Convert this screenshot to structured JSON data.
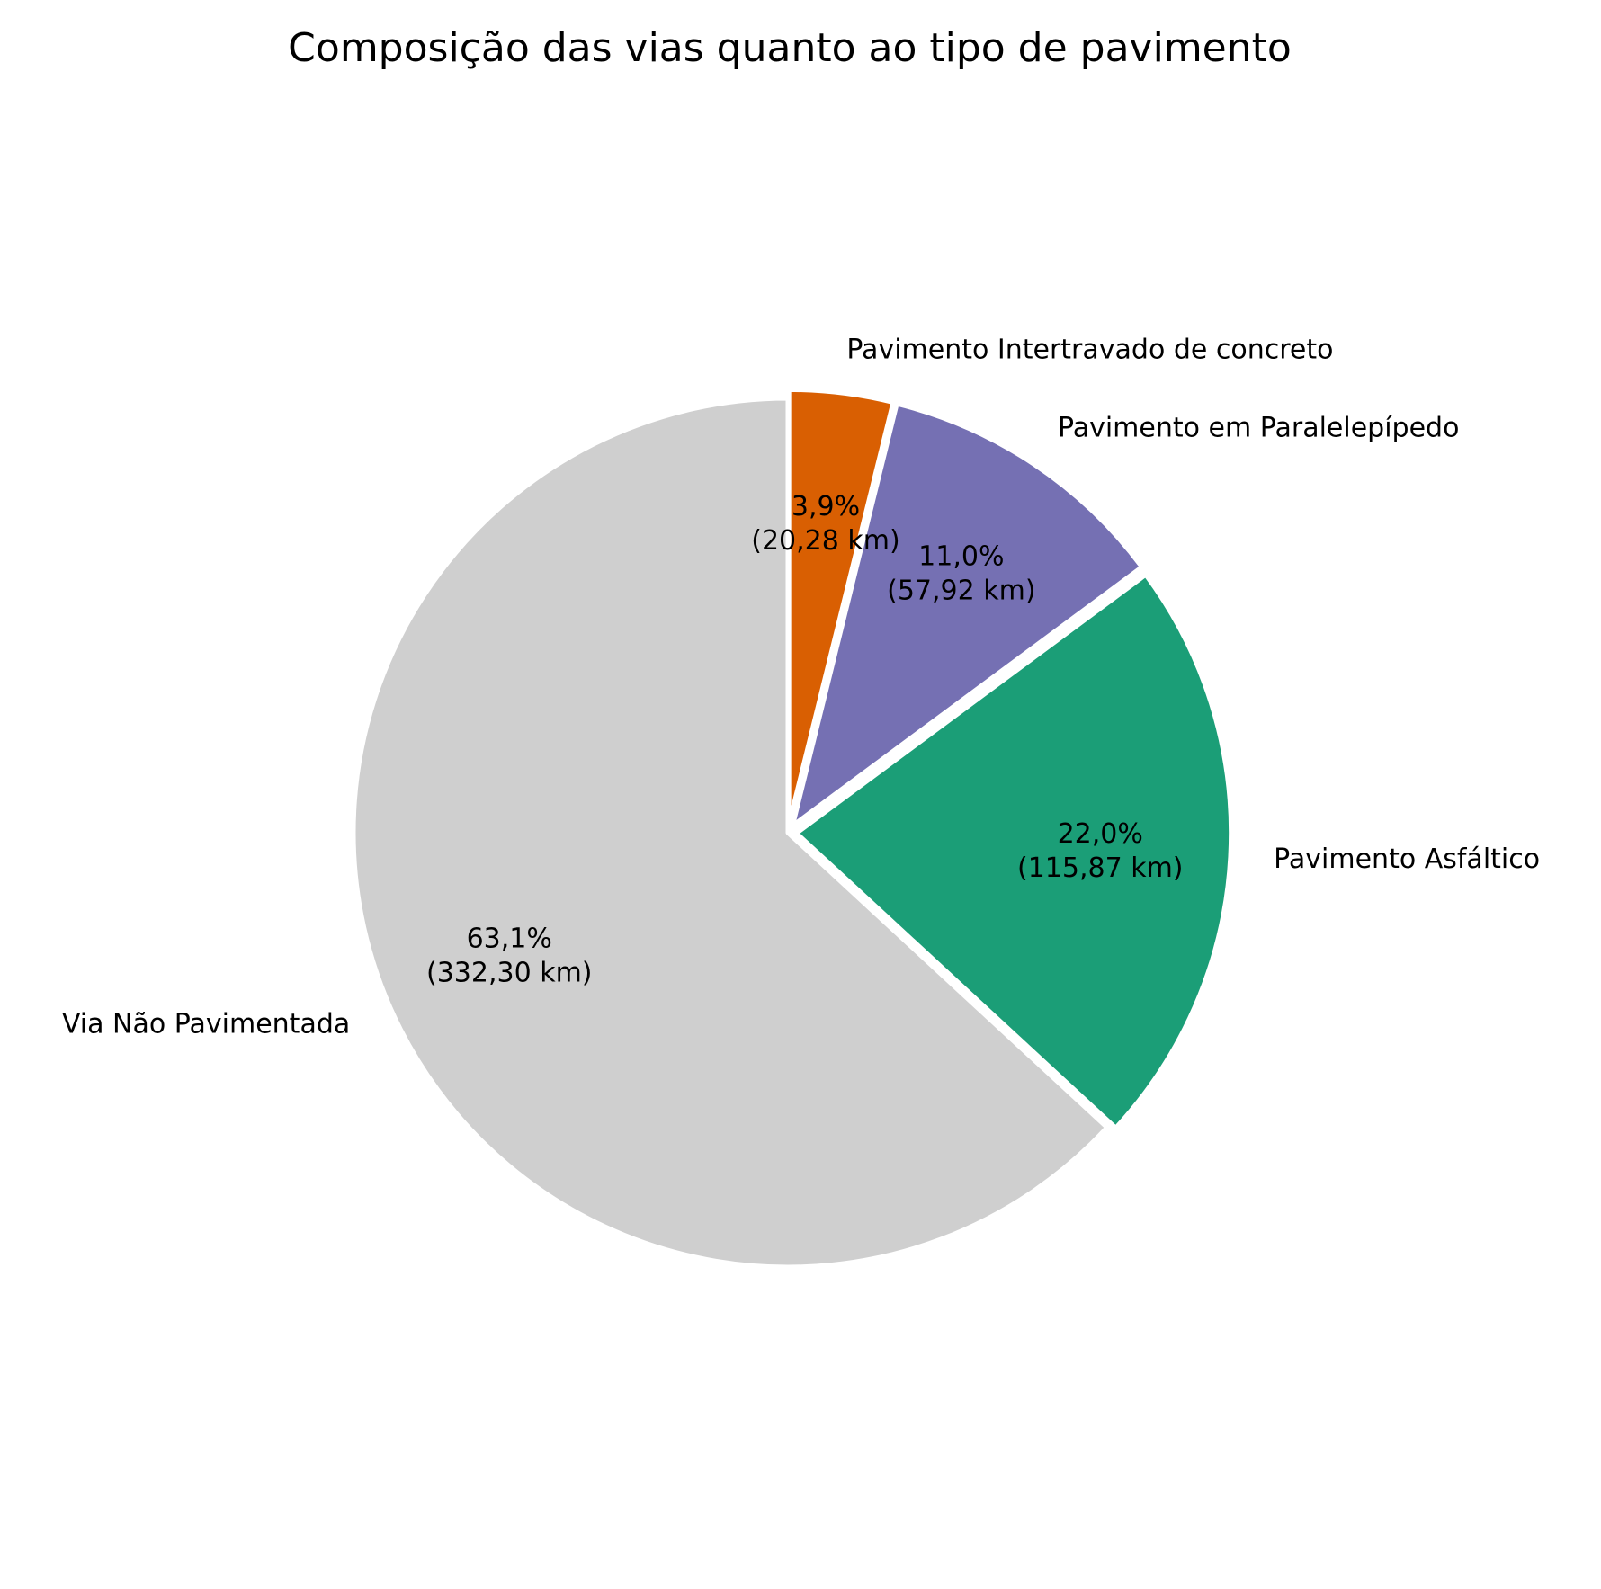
{
  "chart_data": {
    "type": "pie",
    "title": "Composição das vias quanto ao tipo de pavimento",
    "start_angle_deg": 90,
    "direction": "clockwise",
    "slices": [
      {
        "label": "Pavimento Intertravado de concreto",
        "value": 20.28,
        "percent_label": "3,9%",
        "value_label": "(20,28 km)",
        "color": "#d95f02",
        "exploded": true
      },
      {
        "label": "Pavimento em Paralelepípedo",
        "value": 57.92,
        "percent_label": "11,0%",
        "value_label": "(57,92 km)",
        "color": "#7570b3",
        "exploded": true
      },
      {
        "label": "Pavimento Asfáltico",
        "value": 115.87,
        "percent_label": "22,0%",
        "value_label": "(115,87 km)",
        "color": "#1b9e77",
        "exploded": true
      },
      {
        "label": "Via Não Pavimentada",
        "value": 332.3,
        "percent_label": "63,1%",
        "value_label": "(332,30 km)",
        "color": "#cfcfcf",
        "exploded": false
      }
    ],
    "edge_color": "#ffffff"
  }
}
